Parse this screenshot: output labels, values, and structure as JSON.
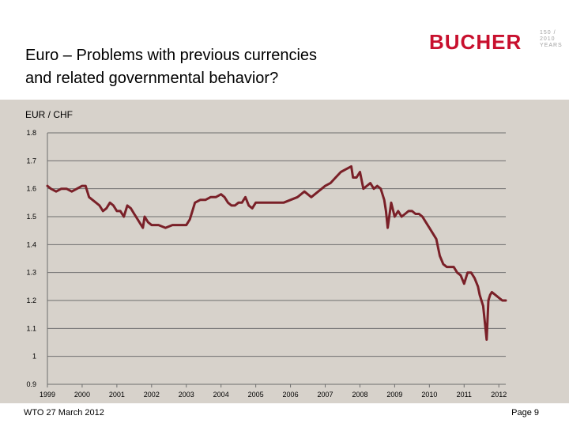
{
  "header": {
    "title_line1": "Euro – Problems with previous currencies",
    "title_line2": "and related governmental behavior?",
    "logo_text": "BUCHER",
    "jubilee_lines": [
      "150 /",
      "2010",
      "YEARS"
    ]
  },
  "footer": {
    "left": "WTO   27 March 2012",
    "right": "Page 9"
  },
  "colors": {
    "line": "#7a2028",
    "panel": "#d7d2cb",
    "logo": "#c8102e"
  },
  "chart_data": {
    "type": "line",
    "title": "EUR / CHF",
    "xlabel": "",
    "ylabel": "",
    "xlim": [
      1999,
      2012.2
    ],
    "ylim": [
      0.9,
      1.8
    ],
    "grid": true,
    "x_ticks": [
      1999,
      2000,
      2001,
      2002,
      2003,
      2004,
      2005,
      2006,
      2007,
      2008,
      2009,
      2010,
      2011,
      2012
    ],
    "x_tick_labels": [
      "1999",
      "2000",
      "2001",
      "2002",
      "2003",
      "2004",
      "2005",
      "2006",
      "2007",
      "2008",
      "2009",
      "2010",
      "2011",
      "2012"
    ],
    "y_ticks": [
      0.9,
      1.0,
      1.1,
      1.2,
      1.3,
      1.4,
      1.5,
      1.6,
      1.7,
      1.8
    ],
    "y_tick_labels": [
      "0.9",
      "1",
      "1.1",
      "1.2",
      "1.3",
      "1.4",
      "1.5",
      "1.6",
      "1.7",
      "1.8"
    ],
    "series": [
      {
        "name": "EUR / CHF",
        "x": [
          1999.0,
          1999.1,
          1999.25,
          1999.4,
          1999.55,
          1999.7,
          1999.85,
          2000.0,
          2000.1,
          2000.2,
          2000.3,
          2000.4,
          2000.5,
          2000.6,
          2000.7,
          2000.8,
          2000.9,
          2001.0,
          2001.1,
          2001.2,
          2001.3,
          2001.4,
          2001.5,
          2001.6,
          2001.7,
          2001.75,
          2001.8,
          2001.9,
          2002.0,
          2002.2,
          2002.4,
          2002.6,
          2002.8,
          2003.0,
          2003.1,
          2003.25,
          2003.4,
          2003.55,
          2003.7,
          2003.85,
          2004.0,
          2004.1,
          2004.2,
          2004.3,
          2004.4,
          2004.5,
          2004.6,
          2004.7,
          2004.8,
          2004.9,
          2005.0,
          2005.2,
          2005.4,
          2005.6,
          2005.8,
          2006.0,
          2006.2,
          2006.4,
          2006.6,
          2006.8,
          2007.0,
          2007.15,
          2007.3,
          2007.45,
          2007.6,
          2007.75,
          2007.8,
          2007.9,
          2008.0,
          2008.1,
          2008.2,
          2008.3,
          2008.4,
          2008.5,
          2008.6,
          2008.7,
          2008.75,
          2008.8,
          2008.9,
          2009.0,
          2009.1,
          2009.2,
          2009.3,
          2009.4,
          2009.5,
          2009.6,
          2009.7,
          2009.8,
          2009.9,
          2010.0,
          2010.1,
          2010.2,
          2010.3,
          2010.4,
          2010.5,
          2010.6,
          2010.7,
          2010.8,
          2010.9,
          2011.0,
          2011.1,
          2011.2,
          2011.3,
          2011.4,
          2011.45,
          2011.5,
          2011.55,
          2011.6,
          2011.65,
          2011.7,
          2011.75,
          2011.8,
          2011.9,
          2012.0,
          2012.1,
          2012.2
        ],
        "y": [
          1.61,
          1.6,
          1.59,
          1.6,
          1.6,
          1.59,
          1.6,
          1.61,
          1.61,
          1.57,
          1.56,
          1.55,
          1.54,
          1.52,
          1.53,
          1.55,
          1.54,
          1.52,
          1.52,
          1.5,
          1.54,
          1.53,
          1.51,
          1.49,
          1.47,
          1.46,
          1.5,
          1.48,
          1.47,
          1.47,
          1.46,
          1.47,
          1.47,
          1.47,
          1.49,
          1.55,
          1.56,
          1.56,
          1.57,
          1.57,
          1.58,
          1.57,
          1.55,
          1.54,
          1.54,
          1.55,
          1.55,
          1.57,
          1.54,
          1.53,
          1.55,
          1.55,
          1.55,
          1.55,
          1.55,
          1.56,
          1.57,
          1.59,
          1.57,
          1.59,
          1.61,
          1.62,
          1.64,
          1.66,
          1.67,
          1.68,
          1.64,
          1.64,
          1.66,
          1.6,
          1.61,
          1.62,
          1.6,
          1.61,
          1.6,
          1.56,
          1.52,
          1.46,
          1.55,
          1.5,
          1.52,
          1.5,
          1.51,
          1.52,
          1.52,
          1.51,
          1.51,
          1.5,
          1.48,
          1.46,
          1.44,
          1.42,
          1.36,
          1.33,
          1.32,
          1.32,
          1.32,
          1.3,
          1.29,
          1.26,
          1.3,
          1.3,
          1.28,
          1.25,
          1.22,
          1.2,
          1.18,
          1.12,
          1.06,
          1.2,
          1.22,
          1.23,
          1.22,
          1.21,
          1.2,
          1.2
        ]
      }
    ]
  }
}
